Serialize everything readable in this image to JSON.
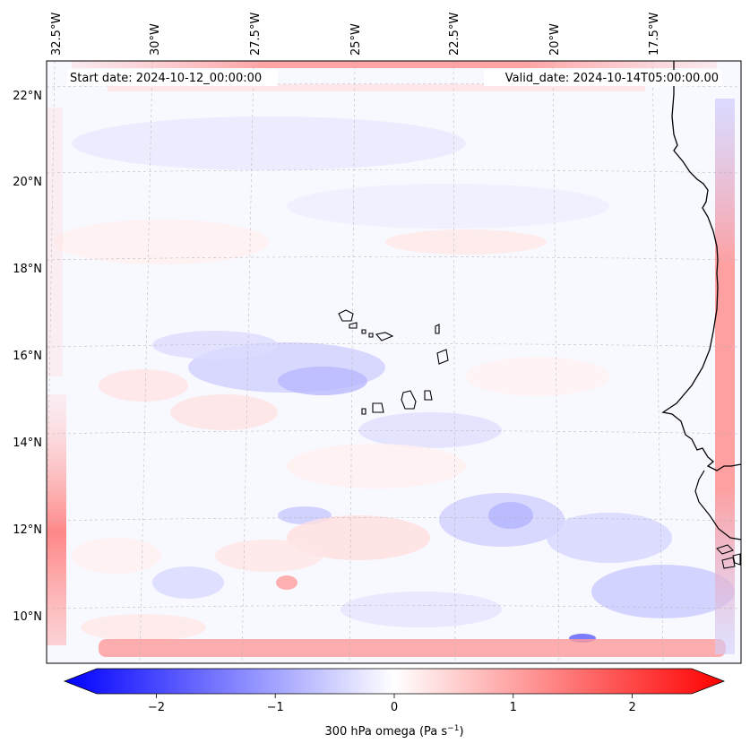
{
  "header": {
    "start_date": "Start date: 2024-10-12_00:00:00",
    "valid_date": "Valid_date: 2024-10-14T05:00:00.00"
  },
  "longitude_labels": [
    "32.5°W",
    "30°W",
    "27.5°W",
    "25°W",
    "22.5°W",
    "20°W",
    "17.5°W"
  ],
  "latitude_labels": [
    "22°N",
    "20°N",
    "18°N",
    "16°N",
    "14°N",
    "12°N",
    "10°N"
  ],
  "colorbar": {
    "label": "300 hPa omega (Pa s",
    "label_exp": "−1",
    "label_close": ")",
    "ticks": [
      "−2",
      "−1",
      "0",
      "1",
      "2"
    ],
    "tick_values": [
      -2,
      -1,
      0,
      1,
      2
    ],
    "range": [
      -2.75,
      2.75
    ],
    "colormap": "bwr",
    "color_low": "#0000ff",
    "color_mid": "#ffffff",
    "color_high": "#ff0000"
  },
  "map": {
    "lon_range": [
      -33,
      -15.5
    ],
    "lat_range": [
      8.8,
      22.8
    ],
    "gridlines": true
  }
}
